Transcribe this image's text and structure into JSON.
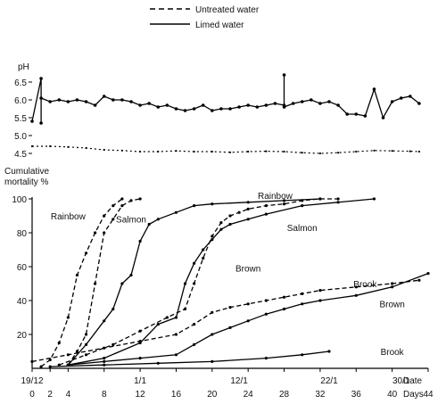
{
  "legend": {
    "untreated": "Untreated water",
    "limed": "Limed water"
  },
  "chart_data": [
    {
      "type": "line",
      "ylabel": "pH",
      "ylim": [
        4.4,
        6.8
      ],
      "xlim": [
        0,
        44
      ],
      "yticks": [
        "6.5",
        "6.0",
        "5.5",
        "5.0",
        "4.5"
      ],
      "ytick_values": [
        6.5,
        6.0,
        5.5,
        5.0,
        4.5
      ],
      "series": [
        {
          "name": "Limed water",
          "style": "solid",
          "x": [
            0,
            1,
            1,
            1,
            2,
            3,
            4,
            5,
            6,
            7,
            8,
            9,
            10,
            11,
            12,
            13,
            14,
            15,
            16,
            17,
            18,
            19,
            20,
            21,
            22,
            23,
            24,
            25,
            26,
            27,
            28,
            28,
            28,
            29,
            30,
            31,
            32,
            33,
            34,
            35,
            36,
            37,
            38,
            39,
            40,
            41,
            42,
            43
          ],
          "y": [
            5.4,
            6.6,
            5.35,
            6.05,
            5.95,
            6.0,
            5.95,
            6.0,
            5.95,
            5.85,
            6.1,
            6.0,
            6.0,
            5.95,
            5.85,
            5.9,
            5.8,
            5.85,
            5.75,
            5.7,
            5.75,
            5.85,
            5.7,
            5.75,
            5.75,
            5.8,
            5.85,
            5.8,
            5.85,
            5.9,
            5.85,
            6.7,
            5.8,
            5.9,
            5.95,
            6.0,
            5.9,
            5.95,
            5.85,
            5.6,
            5.6,
            5.55,
            6.3,
            5.5,
            5.95,
            6.05,
            6.1,
            5.9
          ]
        },
        {
          "name": "Untreated water",
          "style": "dashed",
          "x": [
            0,
            2,
            4,
            6,
            8,
            10,
            12,
            14,
            16,
            18,
            20,
            22,
            24,
            26,
            28,
            30,
            32,
            34,
            36,
            38,
            40,
            42,
            43
          ],
          "y": [
            4.7,
            4.7,
            4.68,
            4.65,
            4.6,
            4.58,
            4.55,
            4.55,
            4.57,
            4.55,
            4.55,
            4.53,
            4.55,
            4.56,
            4.55,
            4.52,
            4.5,
            4.52,
            4.55,
            4.58,
            4.57,
            4.56,
            4.55
          ]
        }
      ]
    },
    {
      "type": "line",
      "ylabel": "Cumulative mortality %",
      "xlabel": "Days",
      "xlabel_date": "Date",
      "xlim": [
        0,
        44
      ],
      "ylim": [
        0,
        100
      ],
      "yticks": [
        "100",
        "80",
        "60",
        "40",
        "20"
      ],
      "ytick_values": [
        100,
        80,
        60,
        40,
        20
      ],
      "xticks": [
        "0",
        "2",
        "4",
        "8",
        "12",
        "16",
        "20",
        "24",
        "28",
        "32",
        "36",
        "40",
        "44"
      ],
      "xtick_values": [
        0,
        2,
        4,
        8,
        12,
        16,
        20,
        24,
        28,
        32,
        36,
        40,
        44
      ],
      "date_ticks": [
        {
          "label": "19/12",
          "day": 0
        },
        {
          "label": "1/1",
          "day": 12
        },
        {
          "label": "12/1",
          "day": 23
        },
        {
          "label": "22/1",
          "day": 33
        },
        {
          "label": "30/1",
          "day": 41
        }
      ],
      "series": [
        {
          "name": "Rainbow",
          "water": "untreated",
          "x": [
            1,
            2,
            3,
            4,
            5,
            6,
            7,
            8,
            9,
            10
          ],
          "y": [
            1,
            5,
            15,
            30,
            55,
            68,
            80,
            90,
            96,
            100
          ]
        },
        {
          "name": "Salmon",
          "water": "untreated",
          "x": [
            4,
            5,
            6,
            7,
            8,
            9,
            10,
            11,
            12
          ],
          "y": [
            2,
            10,
            20,
            50,
            80,
            88,
            96,
            99,
            100
          ]
        },
        {
          "name": "Brown",
          "water": "untreated",
          "x": [
            3,
            6,
            9,
            12,
            15,
            17,
            18,
            19,
            20,
            21,
            22,
            23,
            24,
            26,
            28,
            30,
            32,
            34
          ],
          "y": [
            2,
            8,
            14,
            22,
            30,
            35,
            50,
            65,
            78,
            86,
            90,
            92,
            94,
            96,
            97,
            99,
            100,
            100
          ]
        },
        {
          "name": "Brook",
          "water": "untreated",
          "x": [
            0,
            4,
            8,
            12,
            16,
            18,
            20,
            22,
            24,
            26,
            28,
            30,
            32,
            36,
            40,
            43
          ],
          "y": [
            4,
            8,
            12,
            16,
            20,
            26,
            33,
            36,
            38,
            40,
            42,
            44,
            46,
            48,
            50,
            52
          ]
        },
        {
          "name": "Rainbow",
          "water": "limed",
          "x": [
            4,
            6,
            8,
            9,
            10,
            11,
            12,
            13,
            14,
            16,
            18,
            20,
            24,
            28,
            32
          ],
          "y": [
            2,
            14,
            28,
            35,
            50,
            55,
            75,
            85,
            88,
            92,
            96,
            97,
            98,
            99,
            100
          ]
        },
        {
          "name": "Salmon",
          "water": "limed",
          "x": [
            4,
            8,
            12,
            14,
            16,
            17,
            18,
            19,
            20,
            21,
            22,
            24,
            26,
            30,
            34,
            38
          ],
          "y": [
            2,
            6,
            15,
            26,
            30,
            50,
            62,
            70,
            76,
            82,
            85,
            88,
            91,
            96,
            98,
            100
          ]
        },
        {
          "name": "Brown",
          "water": "limed",
          "x": [
            4,
            8,
            12,
            16,
            18,
            20,
            22,
            24,
            26,
            28,
            30,
            32,
            36,
            40,
            44
          ],
          "y": [
            2,
            4,
            6,
            8,
            14,
            20,
            24,
            28,
            32,
            35,
            38,
            40,
            43,
            48,
            56
          ]
        },
        {
          "name": "Brook",
          "water": "limed",
          "x": [
            2,
            8,
            14,
            20,
            26,
            30,
            33
          ],
          "y": [
            1,
            2,
            3,
            4,
            6,
            8,
            10
          ]
        }
      ],
      "annotations": [
        {
          "text": "Rainbow",
          "x": 4,
          "y": 88
        },
        {
          "text": "Salmon",
          "x": 11,
          "y": 86
        },
        {
          "text": "Rainbow",
          "x": 27,
          "y": 100
        },
        {
          "text": "Salmon",
          "x": 30,
          "y": 81
        },
        {
          "text": "Brown",
          "x": 24,
          "y": 57
        },
        {
          "text": "Brook",
          "x": 37,
          "y": 48
        },
        {
          "text": "Brown",
          "x": 40,
          "y": 36
        },
        {
          "text": "Brook",
          "x": 40,
          "y": 8
        }
      ]
    }
  ]
}
